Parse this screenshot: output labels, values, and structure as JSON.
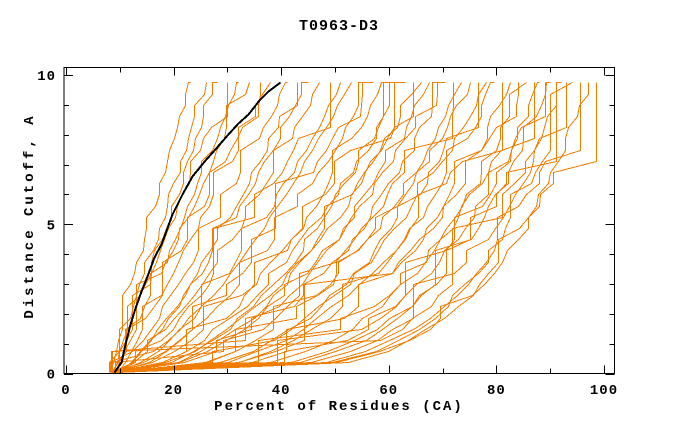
{
  "title": "T0963-D3",
  "colors": {
    "background": "#ffffff",
    "axis": "#000000",
    "model_curve": "#f07d00",
    "highlight_curve": "#000000"
  },
  "chart_data": {
    "type": "line",
    "title": "T0963-D3",
    "xlabel": "Percent of Residues (CA)",
    "ylabel": "Distance Cutoff, A",
    "xlim": [
      0,
      102
    ],
    "ylim": [
      0,
      10.27
    ],
    "grid": false,
    "legend": "none",
    "x_ticks_major": [
      0,
      20,
      40,
      60,
      80,
      100
    ],
    "x_ticks_minor": [
      10,
      30,
      50,
      70,
      90
    ],
    "x_tick_labels": [
      "0",
      "20",
      "40",
      "60",
      "80",
      "100"
    ],
    "y_ticks_major": [
      0,
      5,
      10
    ],
    "y_ticks_minor": [
      1,
      2,
      3,
      4,
      6,
      7,
      8,
      9
    ],
    "y_tick_labels": [
      "0",
      "5",
      "10"
    ],
    "curve_y_top": 9.75,
    "highlight_series": {
      "key": "black_curve",
      "color": "#000000",
      "points": [
        [
          9.0,
          0.05
        ],
        [
          10.2,
          0.4
        ],
        [
          11.0,
          1.0
        ],
        [
          11.9,
          1.65
        ],
        [
          12.8,
          2.2
        ],
        [
          14.0,
          2.75
        ],
        [
          15.1,
          3.25
        ],
        [
          16.3,
          3.9
        ],
        [
          17.6,
          4.35
        ],
        [
          19.7,
          5.35
        ],
        [
          21.6,
          6.0
        ],
        [
          23.5,
          6.6
        ],
        [
          25.9,
          7.15
        ],
        [
          27.6,
          7.5
        ],
        [
          29.9,
          8.0
        ],
        [
          32.0,
          8.4
        ],
        [
          33.8,
          8.7
        ],
        [
          35.8,
          9.15
        ],
        [
          37.6,
          9.45
        ],
        [
          39.8,
          9.75
        ]
      ]
    },
    "model_series": {
      "key": "orange_curves",
      "color": "#f07d00",
      "origin_y": 0.05,
      "curve_params": [
        {
          "x0": 8.2,
          "xtop": 23.0,
          "shape": 1.1,
          "seed": 1,
          "vtop": 0
        },
        {
          "x0": 8.8,
          "xtop": 26.0,
          "shape": 1.0,
          "seed": 2,
          "vtop": 0.8
        },
        {
          "x0": 8.0,
          "xtop": 28.0,
          "shape": 0.95,
          "seed": 3,
          "vtop": 0
        },
        {
          "x0": 9.2,
          "xtop": 30.0,
          "shape": 1.05,
          "seed": 4,
          "vtop": 1.2
        },
        {
          "x0": 8.5,
          "xtop": 32.0,
          "shape": 0.9,
          "seed": 5,
          "vtop": 0
        },
        {
          "x0": 9.0,
          "xtop": 34.0,
          "shape": 1.0,
          "seed": 6,
          "vtop": 0
        },
        {
          "x0": 8.3,
          "xtop": 36.0,
          "shape": 0.85,
          "seed": 7,
          "vtop": 1.5
        },
        {
          "x0": 9.4,
          "xtop": 38.0,
          "shape": 0.95,
          "seed": 8,
          "vtop": 0
        },
        {
          "x0": 8.1,
          "xtop": 41.0,
          "shape": 0.8,
          "seed": 9,
          "vtop": 0
        },
        {
          "x0": 8.9,
          "xtop": 43.0,
          "shape": 0.75,
          "seed": 10,
          "vtop": 1.0
        },
        {
          "x0": 9.6,
          "xtop": 45.0,
          "shape": 0.8,
          "seed": 11,
          "vtop": 0
        },
        {
          "x0": 8.4,
          "xtop": 47.0,
          "shape": 0.7,
          "seed": 12,
          "vtop": 0
        },
        {
          "x0": 9.1,
          "xtop": 49.0,
          "shape": 0.72,
          "seed": 13,
          "vtop": 1.8
        },
        {
          "x0": 8.6,
          "xtop": 51.0,
          "shape": 0.65,
          "seed": 14,
          "vtop": 0
        },
        {
          "x0": 9.3,
          "xtop": 53.0,
          "shape": 0.68,
          "seed": 15,
          "vtop": 0
        },
        {
          "x0": 8.2,
          "xtop": 55.0,
          "shape": 0.6,
          "seed": 16,
          "vtop": 1.2
        },
        {
          "x0": 8.8,
          "xtop": 57.0,
          "shape": 0.62,
          "seed": 17,
          "vtop": 0
        },
        {
          "x0": 9.5,
          "xtop": 59.0,
          "shape": 0.55,
          "seed": 18,
          "vtop": 0
        },
        {
          "x0": 8.3,
          "xtop": 61.0,
          "shape": 0.58,
          "seed": 19,
          "vtop": 2.0
        },
        {
          "x0": 9.0,
          "xtop": 62.0,
          "shape": 0.5,
          "seed": 20,
          "vtop": 0
        },
        {
          "x0": 8.5,
          "xtop": 63.0,
          "shape": 0.55,
          "seed": 21,
          "vtop": 0
        },
        {
          "x0": 9.2,
          "xtop": 64.5,
          "shape": 0.48,
          "seed": 22,
          "vtop": 1.5
        },
        {
          "x0": 8.1,
          "xtop": 66.0,
          "shape": 0.52,
          "seed": 23,
          "vtop": 0
        },
        {
          "x0": 8.9,
          "xtop": 67.5,
          "shape": 0.45,
          "seed": 24,
          "vtop": 0
        },
        {
          "x0": 9.4,
          "xtop": 69.0,
          "shape": 0.5,
          "seed": 25,
          "vtop": 1.0
        },
        {
          "x0": 8.4,
          "xtop": 70.5,
          "shape": 0.42,
          "seed": 26,
          "vtop": 0
        },
        {
          "x0": 9.1,
          "xtop": 72.0,
          "shape": 0.45,
          "seed": 27,
          "vtop": 2.2
        },
        {
          "x0": 8.6,
          "xtop": 73.5,
          "shape": 0.4,
          "seed": 28,
          "vtop": 0
        },
        {
          "x0": 9.3,
          "xtop": 75.0,
          "shape": 0.43,
          "seed": 29,
          "vtop": 0
        },
        {
          "x0": 8.2,
          "xtop": 76.5,
          "shape": 0.38,
          "seed": 30,
          "vtop": 1.6
        },
        {
          "x0": 8.8,
          "xtop": 78.0,
          "shape": 0.4,
          "seed": 31,
          "vtop": 0
        },
        {
          "x0": 9.5,
          "xtop": 79.5,
          "shape": 0.35,
          "seed": 32,
          "vtop": 0
        },
        {
          "x0": 8.3,
          "xtop": 81.0,
          "shape": 0.38,
          "seed": 33,
          "vtop": 2.5
        },
        {
          "x0": 9.0,
          "xtop": 82.5,
          "shape": 0.33,
          "seed": 34,
          "vtop": 0
        },
        {
          "x0": 8.5,
          "xtop": 84.0,
          "shape": 0.35,
          "seed": 35,
          "vtop": 1.2
        },
        {
          "x0": 9.2,
          "xtop": 85.5,
          "shape": 0.3,
          "seed": 36,
          "vtop": 0
        },
        {
          "x0": 8.1,
          "xtop": 87.0,
          "shape": 0.32,
          "seed": 37,
          "vtop": 2.0
        },
        {
          "x0": 8.9,
          "xtop": 88.0,
          "shape": 0.28,
          "seed": 38,
          "vtop": 0
        },
        {
          "x0": 9.4,
          "xtop": 89.0,
          "shape": 0.3,
          "seed": 39,
          "vtop": 1.5
        },
        {
          "x0": 8.4,
          "xtop": 90.0,
          "shape": 0.26,
          "seed": 40,
          "vtop": 0
        },
        {
          "x0": 9.1,
          "xtop": 91.0,
          "shape": 0.28,
          "seed": 41,
          "vtop": 2.8
        },
        {
          "x0": 8.6,
          "xtop": 92.0,
          "shape": 0.24,
          "seed": 42,
          "vtop": 0
        },
        {
          "x0": 9.3,
          "xtop": 93.0,
          "shape": 0.26,
          "seed": 43,
          "vtop": 1.8
        },
        {
          "x0": 8.2,
          "xtop": 94.0,
          "shape": 0.22,
          "seed": 44,
          "vtop": 0
        },
        {
          "x0": 8.8,
          "xtop": 95.5,
          "shape": 0.24,
          "seed": 45,
          "vtop": 2.4
        },
        {
          "x0": 9.5,
          "xtop": 97.0,
          "shape": 0.22,
          "seed": 46,
          "vtop": 0
        },
        {
          "x0": 8.3,
          "xtop": 98.5,
          "shape": 0.23,
          "seed": 47,
          "vtop": 3.0
        }
      ]
    }
  }
}
